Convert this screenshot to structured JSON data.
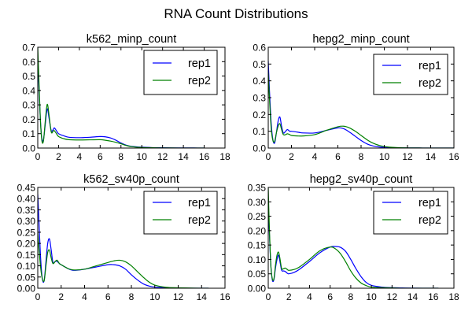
{
  "figure": {
    "title": "RNA Count Distributions"
  },
  "colors": {
    "rep1": "#0000ff",
    "rep2": "#008000",
    "axes": "#000000",
    "background": "#ffffff"
  },
  "chart_data": [
    {
      "type": "line",
      "title": "k562_minp_count",
      "position": "top-left",
      "xlabel": "",
      "ylabel": "",
      "xlim": [
        0,
        18
      ],
      "ylim": [
        0,
        0.7
      ],
      "xticks": [
        0,
        2,
        4,
        6,
        8,
        10,
        12,
        14,
        16,
        18
      ],
      "yticks": [
        0.0,
        0.1,
        0.2,
        0.3,
        0.4,
        0.5,
        0.6,
        0.7
      ],
      "ytick_labels": [
        "0.0",
        "0.1",
        "0.2",
        "0.3",
        "0.4",
        "0.5",
        "0.6",
        "0.7"
      ],
      "legend": {
        "placement": "top-right",
        "entries": [
          "rep1",
          "rep2"
        ]
      },
      "series": [
        {
          "name": "rep1",
          "color": "#0000ff",
          "x": [
            0,
            0.1,
            0.25,
            0.4,
            0.55,
            0.7,
            0.85,
            0.95,
            1.1,
            1.3,
            1.5,
            1.6,
            1.8,
            2,
            2.5,
            3,
            4,
            5,
            6,
            6.5,
            7,
            7.5,
            8,
            8.5,
            9,
            10,
            11,
            12,
            13,
            14,
            15,
            16
          ],
          "y": [
            0.62,
            0.45,
            0.2,
            0.06,
            0.06,
            0.15,
            0.25,
            0.27,
            0.2,
            0.12,
            0.13,
            0.14,
            0.12,
            0.1,
            0.085,
            0.075,
            0.072,
            0.075,
            0.08,
            0.078,
            0.07,
            0.055,
            0.035,
            0.02,
            0.012,
            0.006,
            0.003,
            0.002,
            0.001,
            0.001,
            0.0005,
            0.0
          ]
        },
        {
          "name": "rep2",
          "color": "#008000",
          "x": [
            0,
            0.1,
            0.25,
            0.4,
            0.55,
            0.7,
            0.85,
            0.95,
            1.1,
            1.3,
            1.5,
            1.6,
            1.8,
            2,
            2.5,
            3,
            4,
            5,
            6,
            6.5,
            7,
            7.5,
            8,
            8.5,
            9,
            10,
            11,
            12,
            13,
            14,
            15,
            16
          ],
          "y": [
            0.7,
            0.5,
            0.2,
            0.05,
            0.05,
            0.17,
            0.28,
            0.3,
            0.22,
            0.11,
            0.12,
            0.12,
            0.1,
            0.08,
            0.065,
            0.058,
            0.056,
            0.057,
            0.058,
            0.054,
            0.048,
            0.04,
            0.03,
            0.018,
            0.01,
            0.004,
            0.002,
            0.001,
            0.0005,
            0.0,
            0.0,
            0.0
          ]
        }
      ]
    },
    {
      "type": "line",
      "title": "hepg2_minp_count",
      "position": "top-right",
      "xlabel": "",
      "ylabel": "",
      "xlim": [
        0,
        16
      ],
      "ylim": [
        0,
        0.6
      ],
      "xticks": [
        0,
        2,
        4,
        6,
        8,
        10,
        12,
        14,
        16
      ],
      "yticks": [
        0.0,
        0.1,
        0.2,
        0.3,
        0.4,
        0.5,
        0.6
      ],
      "ytick_labels": [
        "0.0",
        "0.1",
        "0.2",
        "0.3",
        "0.4",
        "0.5",
        "0.6"
      ],
      "legend": {
        "placement": "top-right",
        "entries": [
          "rep1",
          "rep2"
        ]
      },
      "series": [
        {
          "name": "rep1",
          "color": "#0000ff",
          "x": [
            0,
            0.1,
            0.25,
            0.4,
            0.55,
            0.7,
            0.85,
            1.0,
            1.15,
            1.3,
            1.5,
            1.65,
            1.85,
            2,
            2.5,
            3,
            4,
            5,
            6,
            6.5,
            7,
            7.5,
            8,
            8.5,
            9,
            9.5,
            10,
            11,
            12,
            13,
            14,
            16
          ],
          "y": [
            0.52,
            0.35,
            0.15,
            0.05,
            0.03,
            0.09,
            0.16,
            0.185,
            0.13,
            0.09,
            0.1,
            0.11,
            0.1,
            0.1,
            0.095,
            0.09,
            0.09,
            0.105,
            0.12,
            0.115,
            0.095,
            0.07,
            0.045,
            0.025,
            0.013,
            0.007,
            0.004,
            0.002,
            0.001,
            0.0005,
            0.0,
            0.0
          ]
        },
        {
          "name": "rep2",
          "color": "#008000",
          "x": [
            0,
            0.1,
            0.25,
            0.4,
            0.55,
            0.7,
            0.85,
            1.0,
            1.15,
            1.3,
            1.5,
            1.65,
            1.85,
            2,
            2.5,
            3,
            4,
            5,
            6,
            6.5,
            7,
            7.5,
            8,
            8.5,
            9,
            9.5,
            10,
            11,
            12,
            13,
            14,
            16
          ],
          "y": [
            0.45,
            0.3,
            0.12,
            0.045,
            0.04,
            0.09,
            0.13,
            0.145,
            0.11,
            0.08,
            0.08,
            0.085,
            0.08,
            0.075,
            0.072,
            0.072,
            0.08,
            0.105,
            0.127,
            0.13,
            0.12,
            0.1,
            0.075,
            0.05,
            0.03,
            0.017,
            0.009,
            0.003,
            0.001,
            0.0005,
            0.0,
            0.0
          ]
        }
      ]
    },
    {
      "type": "line",
      "title": "k562_sv40p_count",
      "position": "bottom-left",
      "xlabel": "",
      "ylabel": "",
      "xlim": [
        0,
        16
      ],
      "ylim": [
        0,
        0.45
      ],
      "xticks": [
        0,
        2,
        4,
        6,
        8,
        10,
        12,
        14,
        16
      ],
      "yticks": [
        0.0,
        0.05,
        0.1,
        0.15,
        0.2,
        0.25,
        0.3,
        0.35,
        0.4,
        0.45
      ],
      "ytick_labels": [
        "0.00",
        "0.05",
        "0.10",
        "0.15",
        "0.20",
        "0.25",
        "0.30",
        "0.35",
        "0.40",
        "0.45"
      ],
      "legend": {
        "placement": "top-right",
        "entries": [
          "rep1",
          "rep2"
        ]
      },
      "series": [
        {
          "name": "rep1",
          "color": "#0000ff",
          "x": [
            0,
            0.1,
            0.25,
            0.4,
            0.55,
            0.7,
            0.85,
            1.0,
            1.15,
            1.3,
            1.5,
            1.65,
            1.85,
            2,
            2.5,
            3,
            4,
            5,
            6,
            6.5,
            7,
            7.5,
            8,
            8.5,
            9,
            9.5,
            10,
            11,
            12,
            13,
            14,
            14.6
          ],
          "y": [
            0.42,
            0.3,
            0.13,
            0.04,
            0.035,
            0.12,
            0.2,
            0.22,
            0.17,
            0.115,
            0.12,
            0.12,
            0.11,
            0.105,
            0.09,
            0.08,
            0.085,
            0.095,
            0.105,
            0.105,
            0.1,
            0.085,
            0.06,
            0.038,
            0.02,
            0.01,
            0.005,
            0.002,
            0.001,
            0.0,
            0.0,
            0.0
          ]
        },
        {
          "name": "rep2",
          "color": "#008000",
          "x": [
            0,
            0.1,
            0.25,
            0.4,
            0.55,
            0.7,
            0.85,
            1.0,
            1.15,
            1.3,
            1.5,
            1.65,
            1.85,
            2,
            2.5,
            3,
            4,
            5,
            6,
            6.5,
            7,
            7.5,
            8,
            8.5,
            9,
            9.5,
            10,
            11,
            12,
            13,
            14,
            14.6
          ],
          "y": [
            0.25,
            0.18,
            0.09,
            0.04,
            0.035,
            0.1,
            0.16,
            0.17,
            0.135,
            0.11,
            0.12,
            0.125,
            0.11,
            0.105,
            0.09,
            0.082,
            0.085,
            0.1,
            0.115,
            0.122,
            0.125,
            0.118,
            0.1,
            0.075,
            0.05,
            0.028,
            0.014,
            0.004,
            0.002,
            0.001,
            0.0,
            0.0
          ]
        }
      ]
    },
    {
      "type": "line",
      "title": "hepg2_sv40p_count",
      "position": "bottom-right",
      "xlabel": "",
      "ylabel": "",
      "xlim": [
        0,
        18
      ],
      "ylim": [
        0,
        0.35
      ],
      "xticks": [
        0,
        2,
        4,
        6,
        8,
        10,
        12,
        14,
        16,
        18
      ],
      "yticks": [
        0.0,
        0.05,
        0.1,
        0.15,
        0.2,
        0.25,
        0.3,
        0.35
      ],
      "ytick_labels": [
        "0.00",
        "0.05",
        "0.10",
        "0.15",
        "0.20",
        "0.25",
        "0.30",
        "0.35"
      ],
      "legend": {
        "placement": "top-right",
        "entries": [
          "rep1",
          "rep2"
        ]
      },
      "series": [
        {
          "name": "rep1",
          "color": "#0000ff",
          "x": [
            0,
            0.1,
            0.25,
            0.4,
            0.55,
            0.7,
            0.85,
            1.0,
            1.15,
            1.3,
            1.5,
            1.65,
            1.85,
            2,
            2.5,
            3,
            4,
            5,
            6,
            6.5,
            7,
            7.5,
            8,
            8.5,
            9,
            9.5,
            10,
            11,
            12,
            13,
            14,
            16,
            16.5
          ],
          "y": [
            0.3,
            0.2,
            0.08,
            0.028,
            0.03,
            0.07,
            0.1,
            0.115,
            0.09,
            0.062,
            0.06,
            0.058,
            0.052,
            0.05,
            0.055,
            0.065,
            0.093,
            0.123,
            0.143,
            0.145,
            0.142,
            0.128,
            0.1,
            0.068,
            0.04,
            0.02,
            0.01,
            0.004,
            0.002,
            0.001,
            0.0005,
            0.0,
            0.0
          ]
        },
        {
          "name": "rep2",
          "color": "#008000",
          "x": [
            0,
            0.1,
            0.25,
            0.4,
            0.55,
            0.7,
            0.85,
            1.0,
            1.15,
            1.3,
            1.5,
            1.65,
            1.85,
            2,
            2.5,
            3,
            4,
            5,
            6,
            6.5,
            7,
            7.5,
            8,
            8.5,
            9,
            9.5,
            10,
            11,
            12,
            13,
            14,
            16,
            16.5
          ],
          "y": [
            0.35,
            0.22,
            0.08,
            0.032,
            0.033,
            0.08,
            0.115,
            0.125,
            0.1,
            0.068,
            0.068,
            0.07,
            0.065,
            0.062,
            0.065,
            0.073,
            0.1,
            0.13,
            0.143,
            0.137,
            0.12,
            0.092,
            0.06,
            0.035,
            0.018,
            0.009,
            0.004,
            0.002,
            0.001,
            0.0,
            0.0,
            0.0,
            0.0
          ]
        }
      ]
    }
  ]
}
